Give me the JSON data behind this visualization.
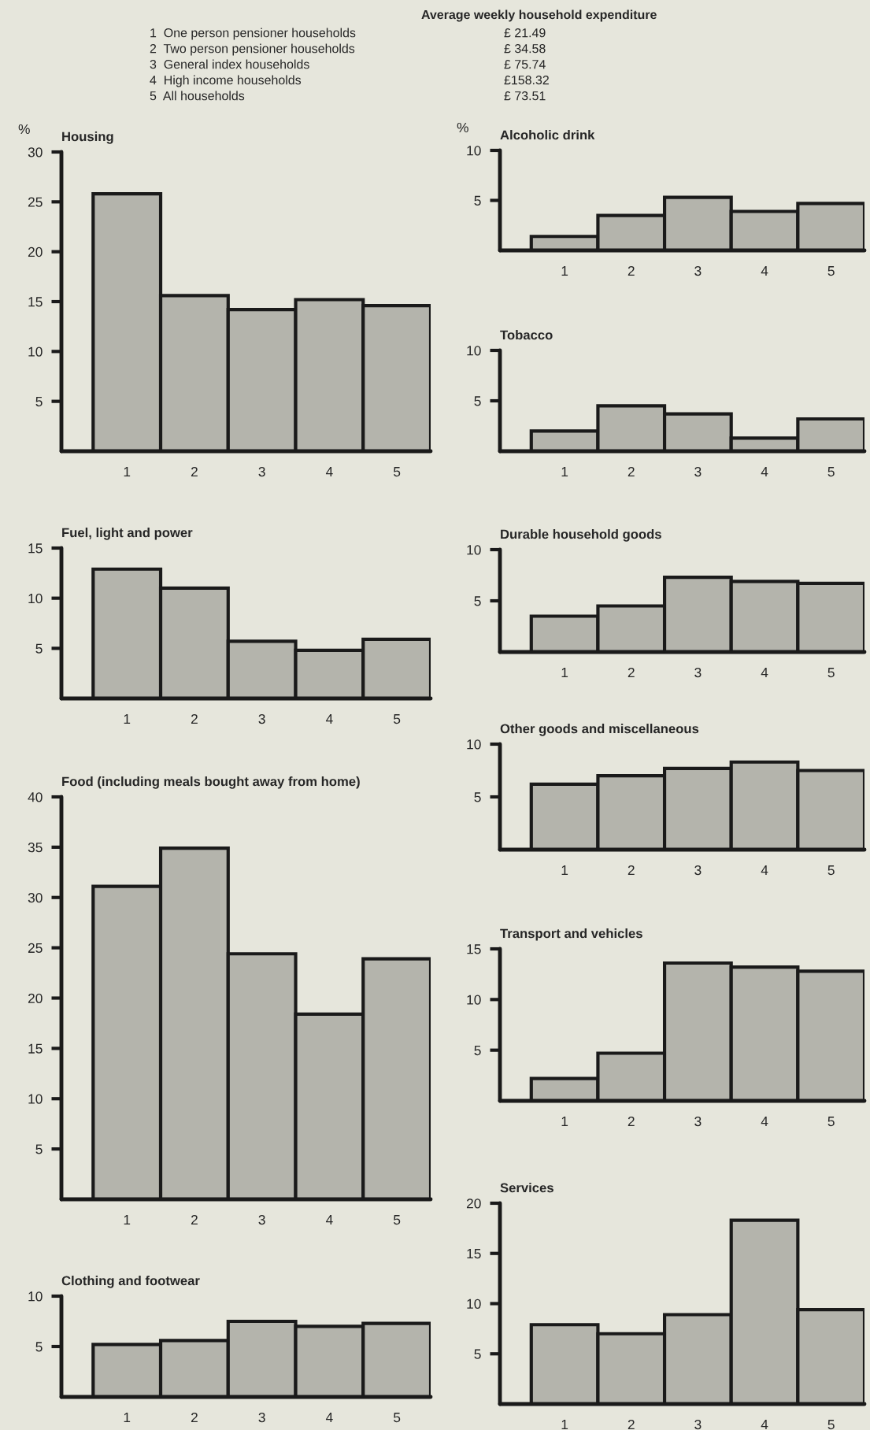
{
  "chart_data": [
    {
      "type": "other",
      "title": "Average weekly household expenditure",
      "annotations": [
        "1  One person pensioner households",
        "£ 21.49",
        "2  Two person pensioner households",
        "£ 34.58",
        "3  General index households",
        "£ 75.74",
        "4  High income households",
        "£158.32",
        "5  All households",
        "£ 73.51"
      ]
    },
    {
      "type": "bar",
      "title": "Housing",
      "ylabel": "%",
      "categories": [
        "1",
        "2",
        "3",
        "4",
        "5"
      ],
      "values": [
        25.8,
        15.6,
        14.2,
        15.2,
        14.6
      ],
      "color": "#b4b4ac",
      "ylim": [
        0,
        30
      ],
      "yticks": [
        5,
        10,
        15,
        20,
        25,
        30
      ]
    },
    {
      "type": "bar",
      "title": "Fuel, light and power",
      "categories": [
        "1",
        "2",
        "3",
        "4",
        "5"
      ],
      "values": [
        12.9,
        11.0,
        5.7,
        4.8,
        5.9
      ],
      "color": "#b4b4ac",
      "ylim": [
        0,
        15
      ],
      "yticks": [
        5,
        10,
        15
      ]
    },
    {
      "type": "bar",
      "title": "Food (including meals bought away from home)",
      "categories": [
        "1",
        "2",
        "3",
        "4",
        "5"
      ],
      "values": [
        31.1,
        34.9,
        24.4,
        18.4,
        23.9
      ],
      "color": "#b4b4ac",
      "ylim": [
        0,
        40
      ],
      "yticks": [
        5,
        10,
        15,
        20,
        25,
        30,
        35,
        40
      ]
    },
    {
      "type": "bar",
      "title": "Clothing and footwear",
      "categories": [
        "1",
        "2",
        "3",
        "4",
        "5"
      ],
      "values": [
        5.2,
        5.6,
        7.5,
        7.0,
        7.3
      ],
      "color": "#b4b4ac",
      "ylim": [
        0,
        10
      ],
      "yticks": [
        5,
        10
      ]
    },
    {
      "type": "bar",
      "title": "Alcoholic drink",
      "ylabel": "%",
      "categories": [
        "1",
        "2",
        "3",
        "4",
        "5"
      ],
      "values": [
        1.4,
        3.5,
        5.3,
        3.9,
        4.7
      ],
      "color": "#b4b4ac",
      "ylim": [
        0,
        10
      ],
      "yticks": [
        5,
        10
      ]
    },
    {
      "type": "bar",
      "title": "Tobacco",
      "categories": [
        "1",
        "2",
        "3",
        "4",
        "5"
      ],
      "values": [
        2.0,
        4.5,
        3.7,
        1.3,
        3.2
      ],
      "color": "#b4b4ac",
      "ylim": [
        0,
        10
      ],
      "yticks": [
        5,
        10
      ]
    },
    {
      "type": "bar",
      "title": "Durable household goods",
      "categories": [
        "1",
        "2",
        "3",
        "4",
        "5"
      ],
      "values": [
        3.5,
        4.5,
        7.3,
        6.9,
        6.7
      ],
      "color": "#b4b4ac",
      "ylim": [
        0,
        10
      ],
      "yticks": [
        5,
        10
      ]
    },
    {
      "type": "bar",
      "title": "Other goods and miscellaneous",
      "categories": [
        "1",
        "2",
        "3",
        "4",
        "5"
      ],
      "values": [
        6.2,
        7.0,
        7.7,
        8.3,
        7.5
      ],
      "color": "#b4b4ac",
      "ylim": [
        0,
        10
      ],
      "yticks": [
        5,
        10
      ]
    },
    {
      "type": "bar",
      "title": "Transport and vehicles",
      "categories": [
        "1",
        "2",
        "3",
        "4",
        "5"
      ],
      "values": [
        2.2,
        4.7,
        13.6,
        13.2,
        12.8
      ],
      "color": "#b4b4ac",
      "ylim": [
        0,
        15
      ],
      "yticks": [
        5,
        10,
        15
      ]
    },
    {
      "type": "bar",
      "title": "Services",
      "categories": [
        "1",
        "2",
        "3",
        "4",
        "5"
      ],
      "values": [
        7.9,
        7.0,
        8.9,
        18.3,
        9.4
      ],
      "color": "#b4b4ac",
      "ylim": [
        0,
        20
      ],
      "yticks": [
        5,
        10,
        15,
        20
      ]
    }
  ]
}
